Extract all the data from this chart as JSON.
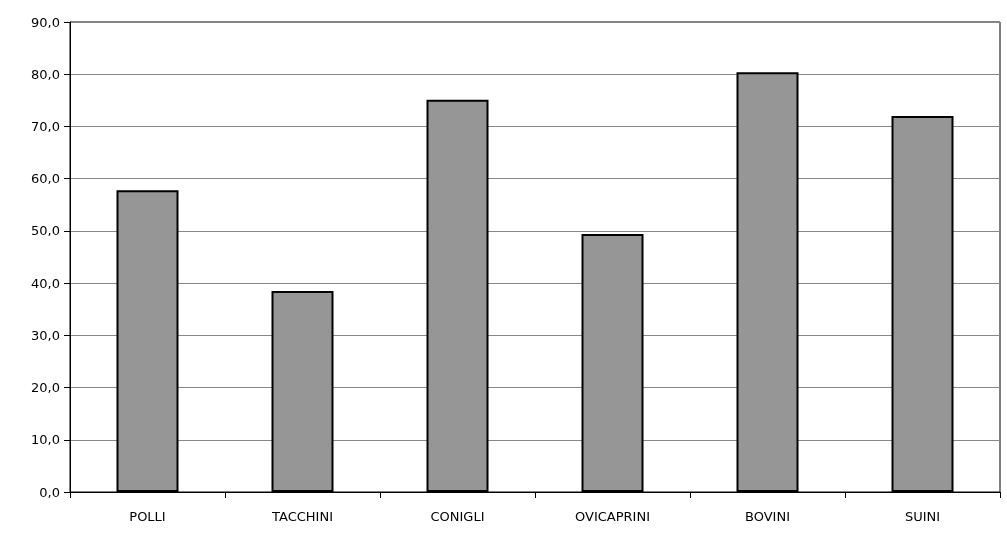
{
  "chart_data": {
    "type": "bar",
    "categories": [
      "POLLI",
      "TACCHINI",
      "CONIGLI",
      "OVICAPRINI",
      "BOVINI",
      "SUINI"
    ],
    "values": [
      57.8,
      38.5,
      75.1,
      49.4,
      80.4,
      72.0
    ],
    "color": "#969696",
    "ylim": [
      0,
      90
    ],
    "yticks": [
      {
        "value": 0,
        "label": "0,0"
      },
      {
        "value": 10,
        "label": "10,0"
      },
      {
        "value": 20,
        "label": "20,0"
      },
      {
        "value": 30,
        "label": "30,0"
      },
      {
        "value": 40,
        "label": "40,0"
      },
      {
        "value": 50,
        "label": "50,0"
      },
      {
        "value": 60,
        "label": "60,0"
      },
      {
        "value": 70,
        "label": "70,0"
      },
      {
        "value": 80,
        "label": "80,0"
      },
      {
        "value": 90,
        "label": "90,0"
      }
    ],
    "grid": "y"
  }
}
